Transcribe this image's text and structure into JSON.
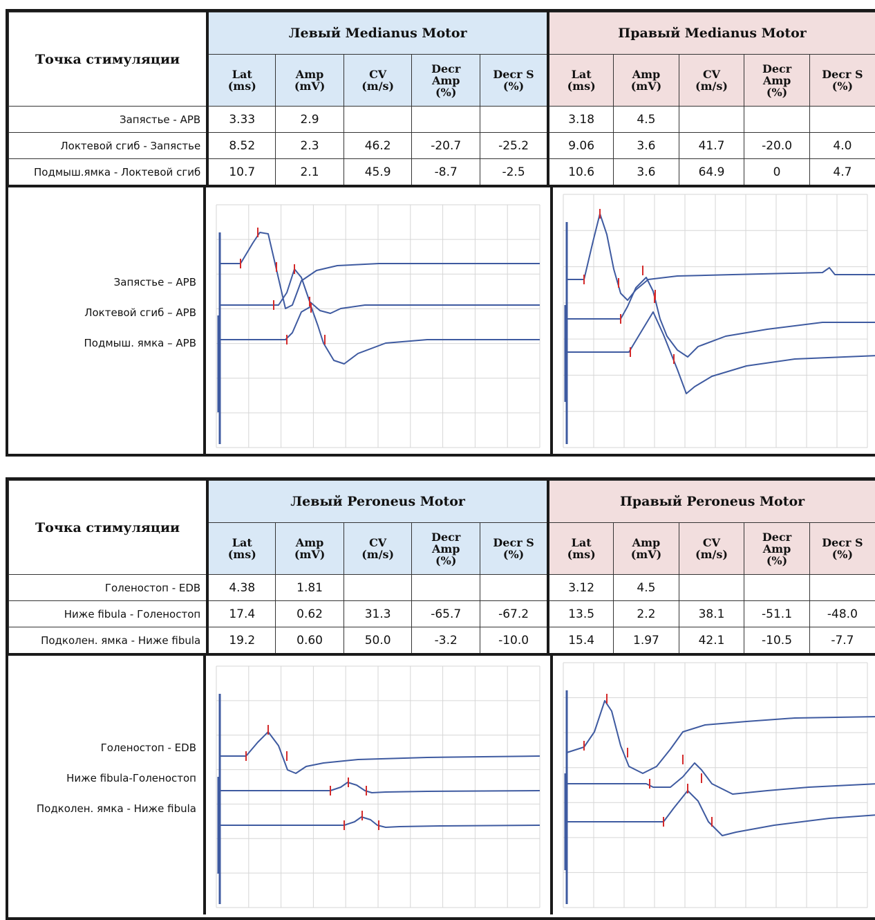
{
  "blocks": [
    {
      "stim_header": "Точка стимуляции",
      "left_title": "Левый Medianus Motor",
      "right_title": "Правый Medianus Motor",
      "columns": [
        [
          "Lat",
          "(ms)"
        ],
        [
          "Amp",
          "(mV)"
        ],
        [
          "CV",
          "(m/s)"
        ],
        [
          "Decr",
          "Amp",
          "(%)"
        ],
        [
          "Decr S",
          "(%)"
        ]
      ],
      "rows": [
        {
          "label": "Запястье - APB",
          "left": [
            "3.33",
            "2.9",
            "",
            "",
            ""
          ],
          "right": [
            "3.18",
            "4.5",
            "",
            "",
            ""
          ]
        },
        {
          "label": "Локтевой сгиб - Запястье",
          "left": [
            "8.52",
            "2.3",
            "46.2",
            "-20.7",
            "-25.2"
          ],
          "right": [
            "9.06",
            "3.6",
            "41.7",
            "-20.0",
            "4.0"
          ]
        },
        {
          "label": "Подмыш.ямка - Локтевой сгиб",
          "left": [
            "10.7",
            "2.1",
            "45.9",
            "-8.7",
            "-2.5"
          ],
          "right": [
            "10.6",
            "3.6",
            "64.9",
            "0",
            "4.7"
          ]
        }
      ],
      "trace_labels": [
        "Запястье – APB",
        "Локтевой сгиб – APB",
        "Подмыш. ямка – APB"
      ]
    },
    {
      "stim_header": "Точка стимуляции",
      "left_title": "Левый Peroneus Motor",
      "right_title": "Правый Peroneus Motor",
      "columns": [
        [
          "Lat",
          "(ms)"
        ],
        [
          "Amp",
          "(mV)"
        ],
        [
          "CV",
          "(m/s)"
        ],
        [
          "Decr",
          "Amp",
          "(%)"
        ],
        [
          "Decr S",
          "(%)"
        ]
      ],
      "rows": [
        {
          "label": "Голеностоп - EDB",
          "left": [
            "4.38",
            "1.81",
            "",
            "",
            ""
          ],
          "right": [
            "3.12",
            "4.5",
            "",
            "",
            ""
          ]
        },
        {
          "label": "Ниже fibula - Голеностоп",
          "left": [
            "17.4",
            "0.62",
            "31.3",
            "-65.7",
            "-67.2"
          ],
          "right": [
            "13.5",
            "2.2",
            "38.1",
            "-51.1",
            "-48.0"
          ]
        },
        {
          "label": "Подколен. ямка - Ниже fibula",
          "left": [
            "19.2",
            "0.60",
            "50.0",
            "-3.2",
            "-10.0"
          ],
          "right": [
            "15.4",
            "1.97",
            "42.1",
            "-10.5",
            "-7.7"
          ]
        }
      ],
      "trace_labels": [
        "Голеностоп - EDB",
        "Ниже fibula-Голеностоп",
        "Подколен. ямка - Ниже fibula"
      ]
    }
  ],
  "colors": {
    "left_header_bg": "#d9e8f6",
    "right_header_bg": "#f2dede",
    "trace": "#3e5aa0",
    "marker": "#d42a2a",
    "grid": "#d6d6d6"
  }
}
